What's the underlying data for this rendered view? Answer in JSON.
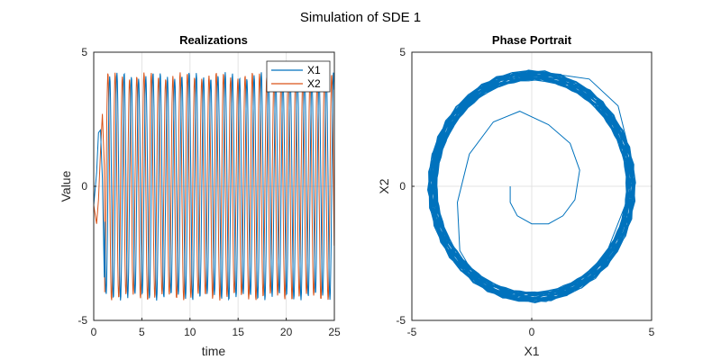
{
  "figure": {
    "title": "Simulation of SDE 1"
  },
  "chart_data": [
    {
      "type": "line",
      "title": "Realizations",
      "xlabel": "time",
      "ylabel": "Value",
      "xlim": [
        0,
        25
      ],
      "ylim": [
        -5,
        5
      ],
      "xticks": [
        0,
        5,
        10,
        15,
        20,
        25
      ],
      "yticks": [
        -5,
        0,
        5
      ],
      "grid": true,
      "legend_position": "top-right",
      "legend": [
        "X1",
        "X2"
      ],
      "series": [
        {
          "name": "X1",
          "color": "#0072BD",
          "description": "sustained oscillation, amplitude about 4.2, period about 0.75 time units, starting near 0",
          "amplitude": 4.2,
          "period": 0.75,
          "x_start": 0,
          "x_end": 25
        },
        {
          "name": "X2",
          "color": "#D95319",
          "description": "oscillation lagging X1 by a quarter period, amplitude about 4.2",
          "amplitude": 4.2,
          "period": 0.75,
          "x_start": 0,
          "x_end": 25
        }
      ],
      "initial_points": {
        "X1": [
          [
            0,
            -0.7
          ],
          [
            0.3,
            0.5
          ],
          [
            0.5,
            2.0
          ],
          [
            0.7,
            2.1
          ],
          [
            0.9,
            0.3
          ],
          [
            1.1,
            -3.4
          ]
        ],
        "X2": [
          [
            0,
            -0.7
          ],
          [
            0.3,
            -1.4
          ],
          [
            0.5,
            -0.5
          ],
          [
            0.7,
            1.3
          ],
          [
            0.9,
            2.7
          ],
          [
            1.1,
            0.8
          ]
        ]
      }
    },
    {
      "type": "line",
      "title": "Phase Portrait",
      "xlabel": "X1",
      "ylabel": "X2",
      "xlim": [
        -5,
        5
      ],
      "ylim": [
        -5,
        5
      ],
      "xticks": [
        -5,
        0,
        5
      ],
      "yticks": [
        -5,
        0,
        5
      ],
      "grid": true,
      "series": [
        {
          "name": "",
          "color": "#0072BD",
          "spiral_points": [
            [
              -0.9,
              0.0
            ],
            [
              -0.9,
              -0.6
            ],
            [
              -0.6,
              -1.1
            ],
            [
              0.0,
              -1.4
            ],
            [
              0.7,
              -1.4
            ],
            [
              1.3,
              -1.1
            ],
            [
              1.8,
              -0.5
            ],
            [
              2.0,
              0.6
            ],
            [
              1.6,
              1.6
            ],
            [
              0.7,
              2.3
            ],
            [
              -0.5,
              2.8
            ],
            [
              -1.6,
              2.4
            ],
            [
              -2.6,
              1.2
            ],
            [
              -3.1,
              -0.6
            ],
            [
              -3.0,
              -2.4
            ],
            [
              -2.2,
              -3.6
            ],
            [
              -0.9,
              -4.2
            ],
            [
              0.6,
              -4.3
            ],
            [
              2.0,
              -3.7
            ],
            [
              3.2,
              -2.3
            ],
            [
              3.9,
              -0.7
            ],
            [
              4.1,
              1.2
            ],
            [
              3.6,
              3.0
            ],
            [
              2.4,
              4.0
            ],
            [
              0.8,
              4.2
            ],
            [
              -0.7,
              4.2
            ],
            [
              -2.1,
              3.6
            ],
            [
              -3.3,
              2.6
            ],
            [
              -4.0,
              1.0
            ],
            [
              -4.2,
              -0.8
            ]
          ],
          "limit_cycle_radius": 4.2
        }
      ]
    }
  ]
}
